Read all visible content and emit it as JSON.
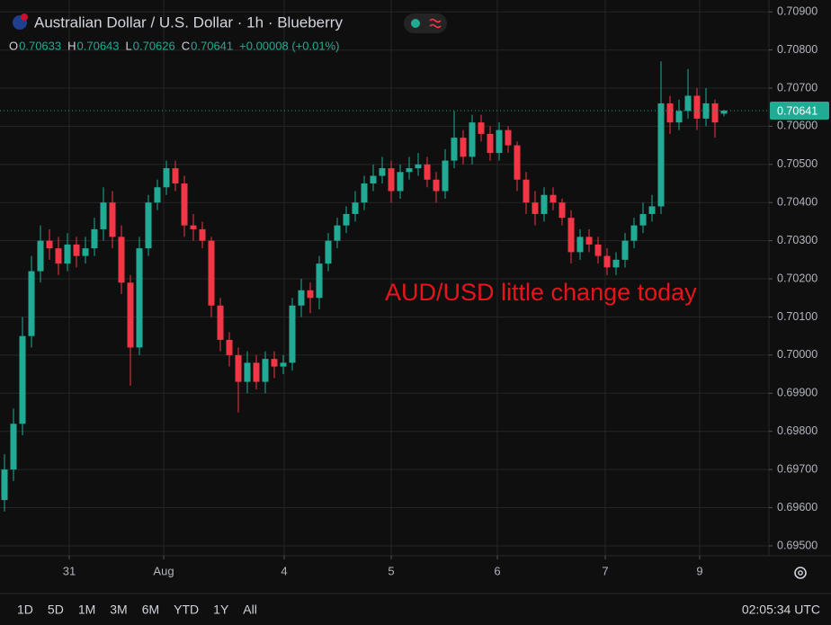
{
  "chart_data": {
    "type": "candlestick",
    "title": "Australian Dollar / U.S. Dollar · 1h · Blueberry",
    "legend_ohlc": [
      {
        "key": "O",
        "text": "0.70633"
      },
      {
        "key": "H",
        "text": "0.70643"
      },
      {
        "key": "L",
        "text": "0.70626"
      },
      {
        "key": "C",
        "text": "0.70641"
      }
    ],
    "change": "+0.00008 (+0.01%)",
    "annotation": "AUD/USD little change today",
    "last_price": 0.70641,
    "up_color": "#22ab94",
    "down_color": "#f23645",
    "grid": true,
    "open": [
      0.6962,
      0.697,
      0.6982,
      0.7005,
      0.7022,
      0.703,
      0.7028,
      0.7024,
      0.7029,
      0.7026,
      0.7028,
      0.7033,
      0.704,
      0.7031,
      0.7019,
      0.7002,
      0.7028,
      0.704,
      0.7044,
      0.7049,
      0.7045,
      0.7034,
      0.7033,
      0.703,
      0.7013,
      0.7004,
      0.7,
      0.6993,
      0.6998,
      0.6993,
      0.6999,
      0.6997,
      0.6998,
      0.7013,
      0.7017,
      0.7015,
      0.7024,
      0.703,
      0.7034,
      0.7037,
      0.704,
      0.7045,
      0.7047,
      0.7049,
      0.7043,
      0.7048,
      0.7049,
      0.705,
      0.7046,
      0.7043,
      0.7051,
      0.7057,
      0.7052,
      0.7061,
      0.7058,
      0.7053,
      0.7059,
      0.7055,
      0.7046,
      0.704,
      0.7037,
      0.7042,
      0.704,
      0.7036,
      0.7027,
      0.7031,
      0.7029,
      0.7026,
      0.7023,
      0.7025,
      0.703,
      0.7034,
      0.7037,
      0.7039,
      0.7066,
      0.7061,
      0.7064,
      0.7068,
      0.7062,
      0.7066,
      0.70633
    ],
    "high": [
      0.6974,
      0.6986,
      0.701,
      0.7026,
      0.7034,
      0.7033,
      0.7031,
      0.7032,
      0.7031,
      0.7031,
      0.7036,
      0.7044,
      0.7043,
      0.7034,
      0.7021,
      0.7031,
      0.7042,
      0.7046,
      0.7051,
      0.7051,
      0.7047,
      0.7037,
      0.7035,
      0.7031,
      0.7015,
      0.7006,
      0.7002,
      0.7001,
      0.7,
      0.7001,
      0.7001,
      0.7,
      0.7015,
      0.702,
      0.7019,
      0.7026,
      0.7032,
      0.7036,
      0.7039,
      0.7043,
      0.7047,
      0.705,
      0.7052,
      0.7051,
      0.705,
      0.7052,
      0.7053,
      0.7052,
      0.7048,
      0.7054,
      0.7064,
      0.7059,
      0.7063,
      0.7063,
      0.706,
      0.7061,
      0.706,
      0.7056,
      0.7048,
      0.7043,
      0.7044,
      0.7044,
      0.7041,
      0.7038,
      0.7033,
      0.7033,
      0.7031,
      0.7028,
      0.7027,
      0.7032,
      0.7036,
      0.704,
      0.7042,
      0.7077,
      0.7068,
      0.7067,
      0.7075,
      0.707,
      0.707,
      0.7067,
      0.70643
    ],
    "low": [
      0.6959,
      0.6967,
      0.6979,
      0.7002,
      0.7019,
      0.7025,
      0.7021,
      0.7022,
      0.7023,
      0.7024,
      0.7026,
      0.703,
      0.7028,
      0.7016,
      0.6992,
      0.7,
      0.7026,
      0.7038,
      0.7042,
      0.7043,
      0.7031,
      0.703,
      0.7028,
      0.701,
      0.7001,
      0.6997,
      0.6985,
      0.699,
      0.6991,
      0.699,
      0.6994,
      0.6995,
      0.6996,
      0.701,
      0.7011,
      0.7012,
      0.7022,
      0.7028,
      0.7032,
      0.7035,
      0.7038,
      0.7043,
      0.7045,
      0.704,
      0.7041,
      0.7046,
      0.7047,
      0.7044,
      0.704,
      0.7041,
      0.7049,
      0.705,
      0.705,
      0.7056,
      0.7051,
      0.7051,
      0.7053,
      0.7043,
      0.7037,
      0.7034,
      0.7035,
      0.7038,
      0.7034,
      0.7024,
      0.7025,
      0.7027,
      0.7024,
      0.7021,
      0.7021,
      0.7023,
      0.7028,
      0.7032,
      0.7035,
      0.7037,
      0.7058,
      0.7059,
      0.7062,
      0.7059,
      0.706,
      0.7057,
      0.70626
    ],
    "close": [
      0.697,
      0.6982,
      0.7005,
      0.7022,
      0.703,
      0.7028,
      0.7024,
      0.7029,
      0.7026,
      0.7028,
      0.7033,
      0.704,
      0.7031,
      0.7019,
      0.7002,
      0.7028,
      0.704,
      0.7044,
      0.7049,
      0.7045,
      0.7034,
      0.7033,
      0.703,
      0.7013,
      0.7004,
      0.7,
      0.6993,
      0.6998,
      0.6993,
      0.6999,
      0.6997,
      0.6998,
      0.7013,
      0.7017,
      0.7015,
      0.7024,
      0.703,
      0.7034,
      0.7037,
      0.704,
      0.7045,
      0.7047,
      0.7049,
      0.7043,
      0.7048,
      0.7049,
      0.705,
      0.7046,
      0.7043,
      0.7051,
      0.7057,
      0.7052,
      0.7061,
      0.7058,
      0.7053,
      0.7059,
      0.7055,
      0.7046,
      0.704,
      0.7037,
      0.7042,
      0.704,
      0.7036,
      0.7027,
      0.7031,
      0.7029,
      0.7026,
      0.7023,
      0.7025,
      0.703,
      0.7034,
      0.7037,
      0.7039,
      0.7066,
      0.7061,
      0.7064,
      0.7068,
      0.7062,
      0.7066,
      0.7061,
      0.70641
    ],
    "xlim": [
      -0.5,
      85
    ],
    "xticks": [
      {
        "value": 7.2,
        "label": "31"
      },
      {
        "value": 17.7,
        "label": "Aug"
      },
      {
        "value": 31.1,
        "label": "4"
      },
      {
        "value": 43,
        "label": "5"
      },
      {
        "value": 54.8,
        "label": "6"
      },
      {
        "value": 66.8,
        "label": "7"
      },
      {
        "value": 77.3,
        "label": "9"
      }
    ],
    "ylim": [
      0.69474,
      0.70931
    ],
    "yticks": [
      {
        "value": 0.709,
        "label": "0.70900"
      },
      {
        "value": 0.708,
        "label": "0.70800"
      },
      {
        "value": 0.707,
        "label": "0.70700"
      },
      {
        "value": 0.706,
        "label": "0.70600"
      },
      {
        "value": 0.705,
        "label": "0.70500"
      },
      {
        "value": 0.704,
        "label": "0.70400"
      },
      {
        "value": 0.703,
        "label": "0.70300"
      },
      {
        "value": 0.702,
        "label": "0.70200"
      },
      {
        "value": 0.701,
        "label": "0.70100"
      },
      {
        "value": 0.7,
        "label": "0.70000"
      },
      {
        "value": 0.699,
        "label": "0.69900"
      },
      {
        "value": 0.698,
        "label": "0.69800"
      },
      {
        "value": 0.697,
        "label": "0.69700"
      },
      {
        "value": 0.696,
        "label": "0.69600"
      },
      {
        "value": 0.695,
        "label": "0.69500"
      }
    ],
    "ranges": [
      "1D",
      "5D",
      "1M",
      "3M",
      "6M",
      "YTD",
      "1Y",
      "All"
    ],
    "clock": "02:05:34 UTC"
  }
}
